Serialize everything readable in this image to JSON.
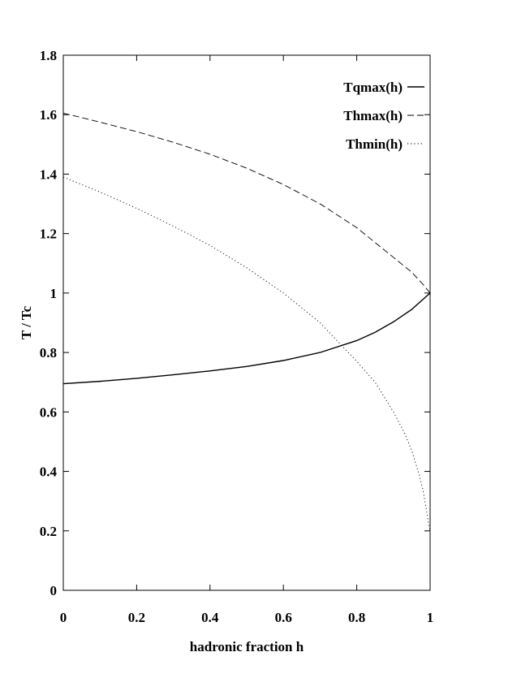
{
  "chart_data": {
    "type": "line",
    "title": "",
    "xlabel": "hadronic fraction h",
    "ylabel": "T / Tc",
    "xlim": [
      0,
      1
    ],
    "ylim": [
      0,
      1.8
    ],
    "x_ticks": [
      "0",
      "0.2",
      "0.4",
      "0.6",
      "0.8",
      "1"
    ],
    "y_ticks": [
      "0",
      "0.2",
      "0.4",
      "0.6",
      "0.8",
      "1",
      "1.2",
      "1.4",
      "1.6",
      "1.8"
    ],
    "grid": false,
    "legend_position": "top-right",
    "series": [
      {
        "name": "Tqmax(h)",
        "style": "solid",
        "color": "#000000",
        "x": [
          0,
          0.1,
          0.2,
          0.3,
          0.4,
          0.5,
          0.6,
          0.7,
          0.8,
          0.85,
          0.9,
          0.95,
          1.0
        ],
        "y": [
          0.695,
          0.703,
          0.713,
          0.725,
          0.738,
          0.753,
          0.773,
          0.8,
          0.84,
          0.868,
          0.903,
          0.945,
          1.0
        ]
      },
      {
        "name": "Thmax(h)",
        "style": "dashed",
        "color": "#000000",
        "x": [
          0,
          0.1,
          0.2,
          0.3,
          0.4,
          0.5,
          0.6,
          0.7,
          0.8,
          0.85,
          0.9,
          0.95,
          0.98,
          1.0
        ],
        "y": [
          1.605,
          1.575,
          1.543,
          1.507,
          1.467,
          1.42,
          1.365,
          1.3,
          1.22,
          1.17,
          1.12,
          1.07,
          1.03,
          1.0
        ]
      },
      {
        "name": "Thmin(h)",
        "style": "dotted",
        "color": "#000000",
        "x": [
          0,
          0.1,
          0.2,
          0.3,
          0.4,
          0.5,
          0.6,
          0.7,
          0.8,
          0.85,
          0.9,
          0.93,
          0.95,
          0.97,
          0.98,
          0.99,
          0.995,
          1.0
        ],
        "y": [
          1.39,
          1.34,
          1.285,
          1.225,
          1.16,
          1.085,
          1.0,
          0.9,
          0.77,
          0.7,
          0.6,
          0.53,
          0.47,
          0.39,
          0.34,
          0.27,
          0.23,
          0.2
        ]
      }
    ]
  }
}
